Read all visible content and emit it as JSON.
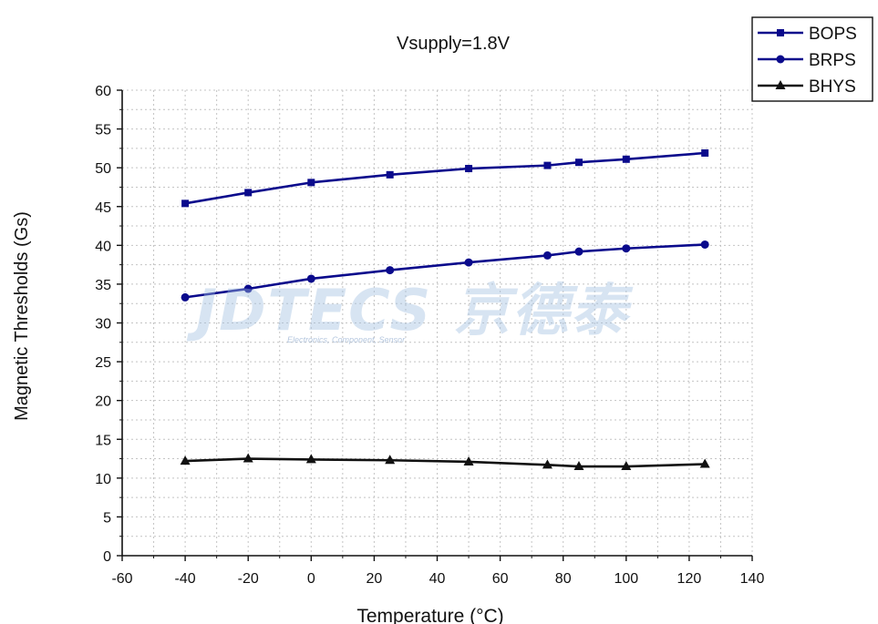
{
  "chart_data": {
    "type": "line",
    "title": "Vsupply=1.8V",
    "xlabel": "Temperature (°C)",
    "ylabel": "Magnetic Thresholds (Gs)",
    "xlim": [
      -60,
      140
    ],
    "ylim": [
      0,
      60
    ],
    "x_ticks": [
      -60,
      -40,
      -20,
      0,
      20,
      40,
      60,
      80,
      100,
      120,
      140
    ],
    "y_ticks": [
      0,
      5,
      10,
      15,
      20,
      25,
      30,
      35,
      40,
      45,
      50,
      55,
      60
    ],
    "grid": true,
    "legend_position": "top-right",
    "x": [
      -40,
      -20,
      0,
      25,
      50,
      75,
      85,
      100,
      125
    ],
    "series": [
      {
        "name": "BOPS",
        "marker": "square",
        "color": "#0a0a8c",
        "values": [
          45.4,
          46.8,
          48.1,
          49.1,
          49.9,
          50.3,
          50.7,
          51.1,
          51.9
        ]
      },
      {
        "name": "BRPS",
        "marker": "circle",
        "color": "#0a0a8c",
        "values": [
          33.3,
          34.4,
          35.7,
          36.8,
          37.8,
          38.7,
          39.2,
          39.6,
          40.1
        ]
      },
      {
        "name": "BHYS",
        "marker": "triangle",
        "color": "#111111",
        "values": [
          12.2,
          12.5,
          12.4,
          12.3,
          12.1,
          11.7,
          11.5,
          11.5,
          11.8
        ]
      }
    ]
  },
  "watermark": {
    "main": "JDTECS 京德泰",
    "sub": "Electronics, Component, Sensor"
  }
}
